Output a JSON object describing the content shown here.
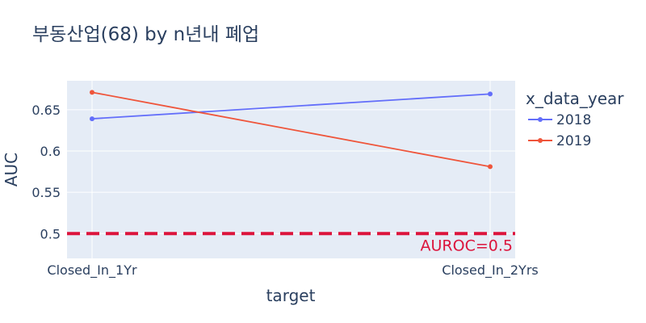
{
  "chart_data": {
    "type": "line",
    "title": "부동산업(68) by n년내 폐업",
    "xlabel": "target",
    "ylabel": "AUC",
    "categories": [
      "Closed_In_1Yr",
      "Closed_In_2Yrs"
    ],
    "ylim": [
      0.47,
      0.685
    ],
    "yticks": [
      0.5,
      0.55,
      0.6,
      0.65
    ],
    "ytick_labels": [
      "0.5",
      "0.55",
      "0.6",
      "0.65"
    ],
    "grid": true,
    "legend": {
      "title": "x_data_year",
      "placement": "right"
    },
    "series": [
      {
        "name": "2018",
        "values": [
          0.639,
          0.669
        ],
        "color": "#636efa"
      },
      {
        "name": "2019",
        "values": [
          0.671,
          0.581
        ],
        "color": "#ef553b"
      }
    ],
    "reference_line": {
      "y": 0.5,
      "label": "AUROC=0.5",
      "color": "#dc143c",
      "style": "dashed"
    }
  }
}
